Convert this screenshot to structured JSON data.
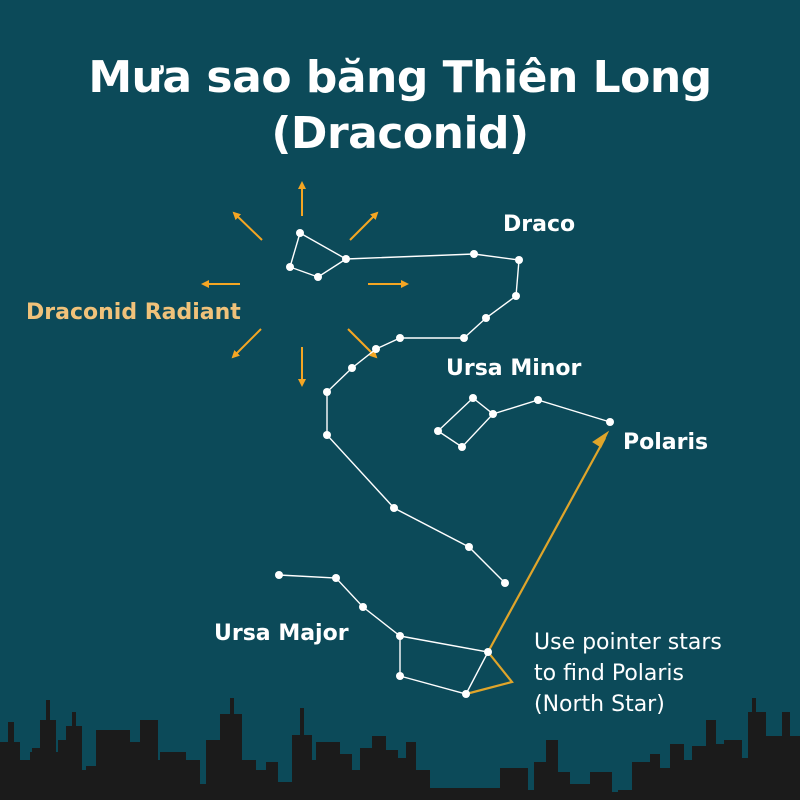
{
  "title": {
    "line1": "Mưa sao băng Thiên Long",
    "line2": "(Draconid)"
  },
  "labels": {
    "draco": "Draco",
    "draconid_radiant": "Draconid Radiant",
    "ursa_minor": "Ursa Minor",
    "polaris": "Polaris",
    "ursa_major": "Ursa Major"
  },
  "note": {
    "line1": "Use pointer stars",
    "line2": "to find Polaris",
    "line3": "(North Star)"
  },
  "colors": {
    "background": "#0c4a59",
    "star_lines": "#ffffff",
    "radiant_arrows": "#f5a623",
    "pointer": "#e0a52a",
    "skyline": "#1b1b1b"
  }
}
